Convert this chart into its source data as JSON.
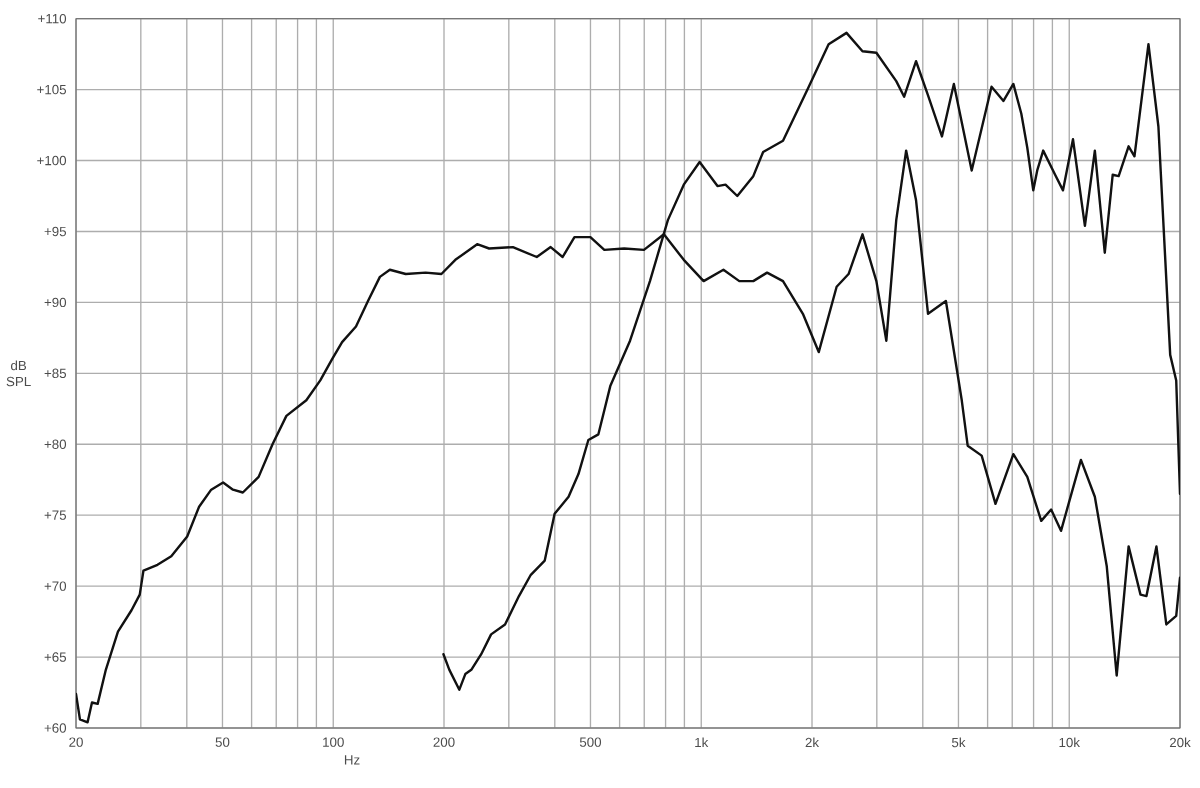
{
  "chart_data": {
    "type": "line",
    "xlabel": "Hz",
    "ylabel": "dB SPL",
    "log": "x",
    "grid": true,
    "legend": false,
    "marker": "none",
    "line_style": "solid",
    "xlim": [
      20,
      20000
    ],
    "ylim": [
      60,
      110
    ],
    "xticks": [
      {
        "value": 20,
        "label": "20"
      },
      {
        "value": 30,
        "label": null
      },
      {
        "value": 40,
        "label": null
      },
      {
        "value": 50,
        "label": "50"
      },
      {
        "value": 60,
        "label": null
      },
      {
        "value": 70,
        "label": null
      },
      {
        "value": 80,
        "label": null
      },
      {
        "value": 90,
        "label": null
      },
      {
        "value": 100,
        "label": "100"
      },
      {
        "value": 200,
        "label": "200"
      },
      {
        "value": 300,
        "label": null
      },
      {
        "value": 400,
        "label": null
      },
      {
        "value": 500,
        "label": "500"
      },
      {
        "value": 600,
        "label": null
      },
      {
        "value": 700,
        "label": null
      },
      {
        "value": 800,
        "label": null
      },
      {
        "value": 900,
        "label": null
      },
      {
        "value": 1000,
        "label": "1k"
      },
      {
        "value": 2000,
        "label": "2k"
      },
      {
        "value": 3000,
        "label": null
      },
      {
        "value": 4000,
        "label": null
      },
      {
        "value": 5000,
        "label": "5k"
      },
      {
        "value": 6000,
        "label": null
      },
      {
        "value": 7000,
        "label": null
      },
      {
        "value": 8000,
        "label": null
      },
      {
        "value": 9000,
        "label": null
      },
      {
        "value": 10000,
        "label": "10k"
      },
      {
        "value": 20000,
        "label": "20k"
      }
    ],
    "yticks": [
      {
        "value": 60,
        "label": "+60"
      },
      {
        "value": 65,
        "label": "+65"
      },
      {
        "value": 70,
        "label": "+70"
      },
      {
        "value": 75,
        "label": "+75"
      },
      {
        "value": 80,
        "label": "+80"
      },
      {
        "value": 85,
        "label": "+85"
      },
      {
        "value": 90,
        "label": "+90"
      },
      {
        "value": 95,
        "label": "+95"
      },
      {
        "value": 100,
        "label": "+100"
      },
      {
        "value": 105,
        "label": "+105"
      },
      {
        "value": 110,
        "label": "+110"
      }
    ],
    "series": [
      {
        "color": "#111111",
        "x": [
          20,
          20.5,
          21.5,
          22.1,
          22.9,
          24.1,
          26,
          28.3,
          29.8,
          30.5,
          33.3,
          36.3,
          40.1,
          43.2,
          46.6,
          50.2,
          53.4,
          56.8,
          62.7,
          68.4,
          74.6,
          84.5,
          92.2,
          99.3,
          105.7,
          115.3,
          124.3,
          133.9,
          142.5,
          157.4,
          178.2,
          196.8,
          214.7,
          246.1,
          265.2,
          307.8,
          357.3,
          389.8,
          420.1,
          452.4,
          499.8,
          545.3,
          617.5,
          698.9,
          791.7,
          896.5,
          1015,
          1149,
          1269,
          1385,
          1510,
          1668,
          1889,
          2086,
          2333,
          2514,
          2743,
          2992,
          3184,
          3388,
          3604,
          3835,
          4133,
          4622,
          5104,
          5297,
          5781,
          6304,
          7050,
          7693,
          8392,
          8929,
          9499,
          10759,
          11738,
          12646,
          13456,
          14500,
          15619,
          16213,
          17254,
          18358,
          19532,
          20000
        ],
        "values": [
          62.4,
          60.6,
          60.4,
          61.8,
          61.7,
          64.1,
          66.8,
          68.3,
          69.4,
          71.1,
          71.5,
          72.1,
          73.5,
          75.6,
          76.8,
          77.3,
          76.8,
          76.6,
          77.7,
          80.0,
          82.0,
          83.1,
          84.5,
          86.0,
          87.2,
          88.3,
          90.1,
          91.8,
          92.3,
          92.0,
          92.1,
          92.0,
          93.0,
          94.1,
          93.8,
          93.9,
          93.2,
          93.9,
          93.2,
          94.6,
          94.6,
          93.7,
          93.8,
          93.7,
          94.8,
          93.0,
          91.5,
          92.3,
          91.5,
          91.5,
          92.1,
          91.5,
          89.2,
          86.5,
          91.1,
          92.0,
          94.8,
          91.5,
          87.3,
          95.8,
          100.7,
          97.2,
          89.2,
          90.1,
          83.1,
          79.9,
          79.2,
          75.8,
          79.3,
          77.7,
          74.6,
          75.4,
          73.9,
          78.9,
          76.3,
          71.4,
          63.7,
          72.8,
          69.4,
          69.3,
          72.8,
          67.3,
          67.9,
          70.6
        ]
      },
      {
        "color": "#111111",
        "x": [
          199.3,
          206.8,
          220.1,
          228.5,
          237.2,
          252.4,
          268.5,
          293,
          319.6,
          344.3,
          375.6,
          399.6,
          436,
          463.8,
          493.5,
          525.4,
          545.3,
          566,
          640.6,
          725.5,
          811.5,
          896.5,
          990,
          1107,
          1164,
          1253,
          1385,
          1473,
          1668,
          1960,
          2219,
          2482,
          2743,
          2992,
          3388,
          3560,
          3835,
          4133,
          4509,
          4858,
          5432,
          6150,
          6627,
          7050,
          7410,
          7693,
          7986,
          8185,
          8497,
          9154,
          9618,
          10237,
          11030,
          11738,
          12490,
          13126,
          13624,
          14497,
          15041,
          16418,
          17470,
          18810,
          19532,
          20000
        ],
        "values": [
          65.2,
          64.1,
          62.7,
          63.8,
          64.1,
          65.2,
          66.6,
          67.3,
          69.3,
          70.8,
          71.8,
          75.1,
          76.3,
          77.9,
          80.3,
          80.7,
          82.4,
          84.1,
          87.3,
          91.5,
          95.8,
          98.3,
          99.9,
          98.2,
          98.3,
          97.5,
          98.9,
          100.6,
          101.4,
          105.2,
          108.2,
          109.0,
          107.7,
          107.6,
          105.6,
          104.5,
          107.0,
          104.6,
          101.7,
          105.4,
          99.3,
          105.2,
          104.2,
          105.4,
          103.3,
          100.9,
          97.9,
          99.3,
          100.7,
          99.0,
          97.9,
          101.5,
          95.4,
          100.7,
          93.5,
          99.0,
          98.9,
          101.0,
          100.3,
          108.2,
          102.4,
          86.3,
          84.5,
          76.5
        ]
      }
    ]
  }
}
